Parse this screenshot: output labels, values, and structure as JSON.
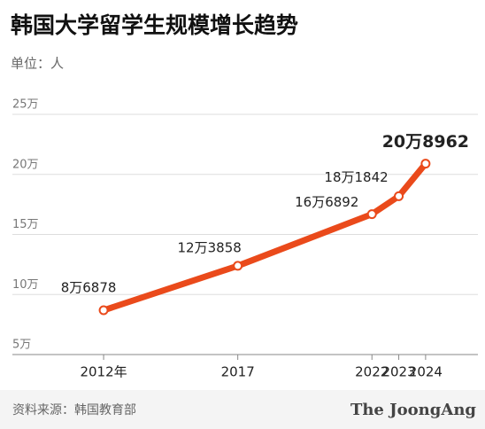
{
  "title": "韩国大学留学生规模增长趋势",
  "unit": "单位：人",
  "chart_data": {
    "type": "line",
    "x": [
      2012,
      2017,
      2022,
      2023,
      2024
    ],
    "values": [
      86878,
      123858,
      166892,
      181842,
      208962
    ],
    "value_labels": [
      "8万6878",
      "12万3858",
      "16万6892",
      "18万1842",
      "20万8962"
    ],
    "color": "#ea4a1b",
    "xlim": [
      2008.6,
      2025.95
    ],
    "xticks": [
      {
        "value": 2012,
        "label": "2012年"
      },
      2017,
      2022,
      2023,
      2024
    ],
    "ylim": [
      50000,
      250000
    ],
    "yticks": [
      {
        "value": 50000,
        "label": "5万"
      },
      {
        "value": 100000,
        "label": "10万"
      },
      {
        "value": 150000,
        "label": "15万"
      },
      {
        "value": 200000,
        "label": "20万"
      },
      {
        "value": 250000,
        "label": "25万"
      }
    ],
    "grid": true
  },
  "source": "资料来源：韩国教育部",
  "brand": "The JoongAng"
}
